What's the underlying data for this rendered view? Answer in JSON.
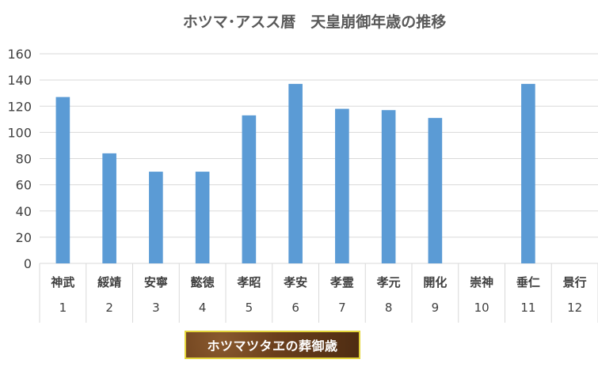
{
  "chart_data": {
    "type": "bar",
    "title": "ホツマ･アスス暦　天皇崩御年歳の推移",
    "categories": [
      {
        "name": "神武",
        "num": "1"
      },
      {
        "name": "綏靖",
        "num": "2"
      },
      {
        "name": "安寧",
        "num": "3"
      },
      {
        "name": "懿徳",
        "num": "4"
      },
      {
        "name": "孝昭",
        "num": "5"
      },
      {
        "name": "孝安",
        "num": "6"
      },
      {
        "name": "孝霊",
        "num": "7"
      },
      {
        "name": "孝元",
        "num": "8"
      },
      {
        "name": "開化",
        "num": "9"
      },
      {
        "name": "崇神",
        "num": "10"
      },
      {
        "name": "垂仁",
        "num": "11"
      },
      {
        "name": "景行",
        "num": "12"
      }
    ],
    "values": [
      127,
      84,
      70,
      70,
      113,
      137,
      118,
      117,
      111,
      null,
      137,
      null
    ],
    "ylim": [
      0,
      160
    ],
    "yticks": [
      0,
      20,
      40,
      60,
      80,
      100,
      120,
      140,
      160
    ],
    "grid": true,
    "bar_color": "#5b9bd5"
  },
  "footer_label": "ホツマツタヱの葬御歳"
}
